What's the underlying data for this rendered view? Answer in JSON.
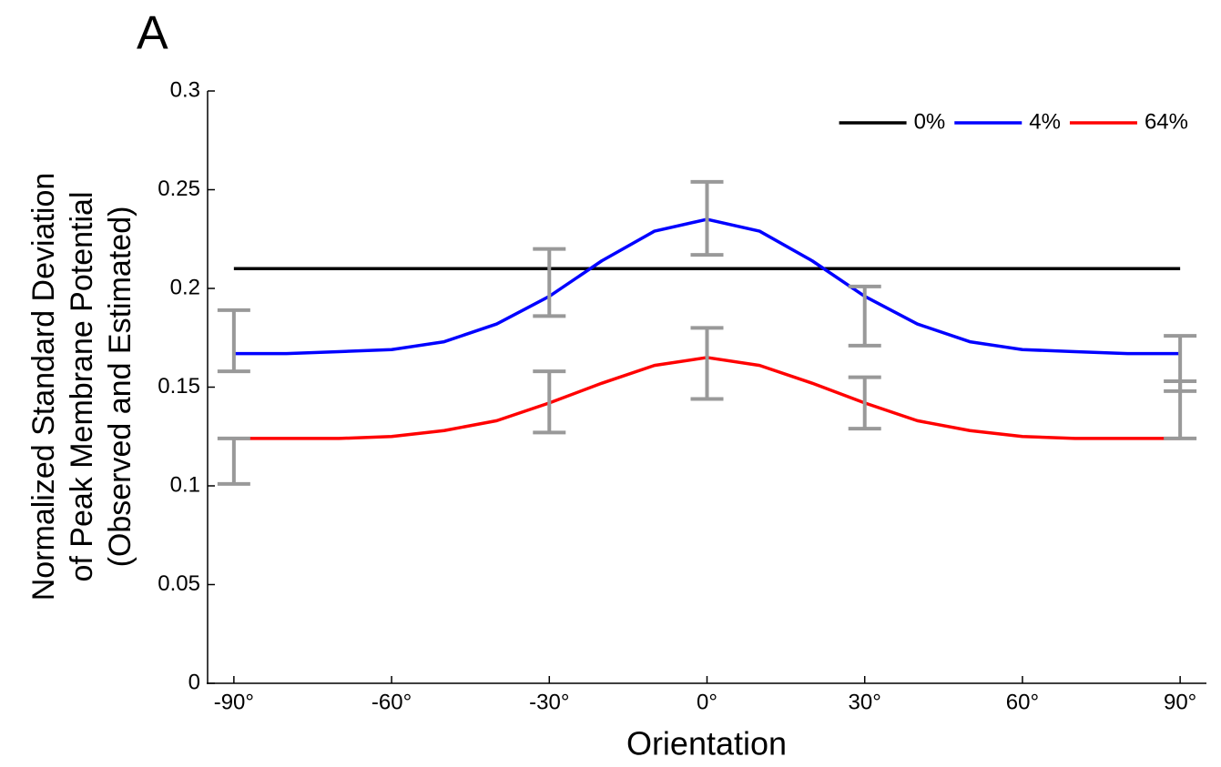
{
  "chart_data": {
    "type": "line",
    "panel_label": "A",
    "x_label": "Orientation",
    "y_label": [
      "Normalized Standard Deviation",
      "of Peak Membrane Potential",
      "(Observed and Estimated)"
    ],
    "x": [
      -90,
      -80,
      -70,
      -60,
      -50,
      -40,
      -30,
      -20,
      -10,
      0,
      10,
      20,
      30,
      40,
      50,
      60,
      70,
      80,
      90
    ],
    "series": [
      {
        "name": "0%",
        "color": "#000000",
        "values": [
          0.21,
          0.21,
          0.21,
          0.21,
          0.21,
          0.21,
          0.21,
          0.21,
          0.21,
          0.21,
          0.21,
          0.21,
          0.21,
          0.21,
          0.21,
          0.21,
          0.21,
          0.21,
          0.21
        ]
      },
      {
        "name": "4%",
        "color": "#0000ff",
        "values": [
          0.167,
          0.167,
          0.168,
          0.169,
          0.173,
          0.182,
          0.196,
          0.214,
          0.229,
          0.235,
          0.229,
          0.214,
          0.196,
          0.182,
          0.173,
          0.169,
          0.168,
          0.167,
          0.167
        ]
      },
      {
        "name": "64%",
        "color": "#ff0000",
        "values": [
          0.124,
          0.124,
          0.124,
          0.125,
          0.128,
          0.133,
          0.142,
          0.152,
          0.161,
          0.165,
          0.161,
          0.152,
          0.142,
          0.133,
          0.128,
          0.125,
          0.124,
          0.124,
          0.124
        ]
      }
    ],
    "error_bar_color": "#999999",
    "error_bars": [
      {
        "x": -90,
        "low": 0.158,
        "high": 0.189
      },
      {
        "x": -90,
        "low": 0.101,
        "high": 0.124
      },
      {
        "x": -30,
        "low": 0.186,
        "high": 0.22
      },
      {
        "x": -30,
        "low": 0.127,
        "high": 0.158
      },
      {
        "x": 0,
        "low": 0.217,
        "high": 0.254
      },
      {
        "x": 0,
        "low": 0.144,
        "high": 0.18
      },
      {
        "x": 30,
        "low": 0.171,
        "high": 0.201
      },
      {
        "x": 30,
        "low": 0.129,
        "high": 0.155
      },
      {
        "x": 90,
        "low": 0.148,
        "high": 0.176
      },
      {
        "x": 90,
        "low": 0.124,
        "high": 0.153
      }
    ],
    "xlim": [
      -95,
      95
    ],
    "xticks": [
      {
        "value": -90,
        "label": "-90°"
      },
      {
        "value": -60,
        "label": "-60°"
      },
      {
        "value": -30,
        "label": "-30°"
      },
      {
        "value": 0,
        "label": "0°"
      },
      {
        "value": 30,
        "label": "30°"
      },
      {
        "value": 60,
        "label": "60°"
      },
      {
        "value": 90,
        "label": "90°"
      }
    ],
    "ylim": [
      0,
      0.3
    ],
    "yticks": [
      0,
      0.05,
      0.1,
      0.15,
      0.2,
      0.25,
      0.3
    ],
    "legend": "upper right"
  }
}
